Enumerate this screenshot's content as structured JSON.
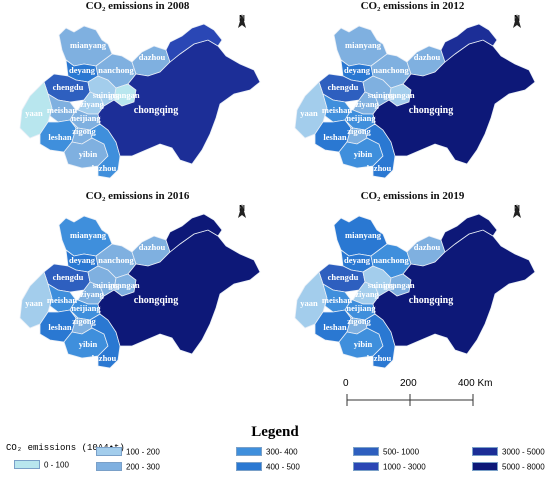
{
  "panels": [
    {
      "title": "CO₂ emissions in 2008",
      "classes": {
        "mianyang": 2,
        "deyang": 4,
        "chengdu": 5,
        "yaan": 0,
        "meishan": 2,
        "leshan": 3,
        "ziyang": 1,
        "suining": 1,
        "neijiang": 2,
        "zigong": 2,
        "yibin": 2,
        "luzhou": 3,
        "nanchong": 2,
        "guangan": 0,
        "dazhou": 2,
        "chongqing": 7,
        "north": 6
      }
    },
    {
      "title": "CO₂ emissions in 2012",
      "classes": {
        "mianyang": 2,
        "deyang": 4,
        "chengdu": 5,
        "yaan": 1,
        "meishan": 3,
        "leshan": 4,
        "ziyang": 2,
        "suining": 2,
        "neijiang": 3,
        "zigong": 2,
        "yibin": 3,
        "luzhou": 4,
        "nanchong": 2,
        "guangan": 1,
        "dazhou": 2,
        "chongqing": 8,
        "north": 7
      }
    },
    {
      "title": "CO₂ emissions in 2016",
      "classes": {
        "mianyang": 3,
        "deyang": 4,
        "chengdu": 5,
        "yaan": 1,
        "meishan": 3,
        "leshan": 4,
        "ziyang": 2,
        "suining": 2,
        "neijiang": 3,
        "zigong": 2,
        "yibin": 3,
        "luzhou": 4,
        "nanchong": 2,
        "guangan": 2,
        "dazhou": 2,
        "chongqing": 8,
        "north": 8
      }
    },
    {
      "title": "CO₂ emissions in 2019",
      "classes": {
        "mianyang": 4,
        "deyang": 4,
        "chengdu": 5,
        "yaan": 1,
        "meishan": 3,
        "leshan": 4,
        "ziyang": 1,
        "suining": 1,
        "neijiang": 3,
        "zigong": 2,
        "yibin": 3,
        "luzhou": 4,
        "nanchong": 3,
        "guangan": 2,
        "dazhou": 2,
        "chongqing": 8,
        "north": 8
      }
    }
  ],
  "labels": {
    "mianyang": "mianyang",
    "deyang": "deyang",
    "chengdu": "chengdu",
    "yaan": "yaan",
    "meishan": "meishan",
    "leshan": "leshan",
    "ziyang": "ziyang",
    "suining": "suining",
    "neijiang": "neijiang",
    "zigong": "zigong",
    "yibin": "yibin",
    "luzhou": "luzhou",
    "nanchong": "nanchong",
    "guangan": "guangan",
    "dazhou": "dazhou",
    "chongqing": "chongqing"
  },
  "north_label": "N",
  "scale_bar": {
    "ticks": [
      "0",
      "200",
      "400 Km"
    ]
  },
  "legend": {
    "title": "Legend",
    "units": "CO₂ emissions (10^4•t)",
    "classes": [
      {
        "label": "0 - 100",
        "color": "#b8e6ee"
      },
      {
        "label": "100 - 200",
        "color": "#a3cdec"
      },
      {
        "label": "200 - 300",
        "color": "#7fb0e0"
      },
      {
        "label": "300- 400",
        "color": "#3f8fdc"
      },
      {
        "label": "400 - 500",
        "color": "#2a78d2"
      },
      {
        "label": "500- 1000",
        "color": "#2e5fbf"
      },
      {
        "label": "1000 - 3000",
        "color": "#2a47b5"
      },
      {
        "label": "3000 - 5000",
        "color": "#1c2e97"
      },
      {
        "label": "5000 - 8000",
        "color": "#0d1878"
      }
    ]
  }
}
